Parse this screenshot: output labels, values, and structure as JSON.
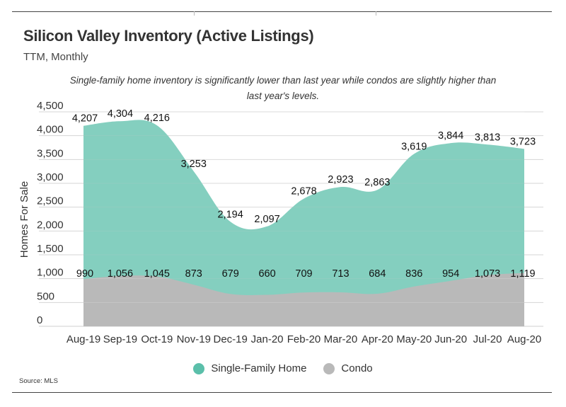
{
  "header": {
    "title": "Silicon Valley Inventory (Active Listings)",
    "subtitle": "TTM, Monthly",
    "annotation": "Single-family home inventory is significantly lower than last year while condos are slightly higher than last year's levels."
  },
  "source": "Source: MLS",
  "legend": [
    {
      "label": "Single-Family Home",
      "color": "#5bbfaa"
    },
    {
      "label": "Condo",
      "color": "#b9b9b9"
    }
  ],
  "chart_data": {
    "type": "area",
    "title": "Silicon Valley Inventory (Active Listings)",
    "subtitle": "TTM, Monthly",
    "xlabel": "",
    "ylabel": "Homes For Sale",
    "ylim": [
      0,
      4500
    ],
    "yticks": [
      0,
      500,
      1000,
      1500,
      2000,
      2500,
      3000,
      3500,
      4000,
      4500
    ],
    "ytick_labels": [
      "0",
      "500",
      "1,000",
      "1,500",
      "2,000",
      "2,500",
      "3,000",
      "3,500",
      "4,000",
      "4,500"
    ],
    "grid": true,
    "legend_position": "bottom",
    "categories": [
      "Aug-19",
      "Sep-19",
      "Oct-19",
      "Nov-19",
      "Dec-19",
      "Jan-20",
      "Feb-20",
      "Mar-20",
      "Apr-20",
      "May-20",
      "Jun-20",
      "Jul-20",
      "Aug-20"
    ],
    "series": [
      {
        "name": "Single-Family Home",
        "color": "#5bbfaa",
        "values": [
          4207,
          4304,
          4216,
          3253,
          2194,
          2097,
          2678,
          2923,
          2863,
          3619,
          3844,
          3813,
          3723
        ],
        "labels": [
          "4,207",
          "4,304",
          "4,216",
          "3,253",
          "2,194",
          "2,097",
          "2,678",
          "2,923",
          "2,863",
          "3,619",
          "3,844",
          "3,813",
          "3,723"
        ]
      },
      {
        "name": "Condo",
        "color": "#b9b9b9",
        "values": [
          990,
          1056,
          1045,
          873,
          679,
          660,
          709,
          713,
          684,
          836,
          954,
          1073,
          1119
        ],
        "labels": [
          "990",
          "1,056",
          "1,045",
          "873",
          "679",
          "660",
          "709",
          "713",
          "684",
          "836",
          "954",
          "1,073",
          "1,119"
        ]
      }
    ]
  }
}
